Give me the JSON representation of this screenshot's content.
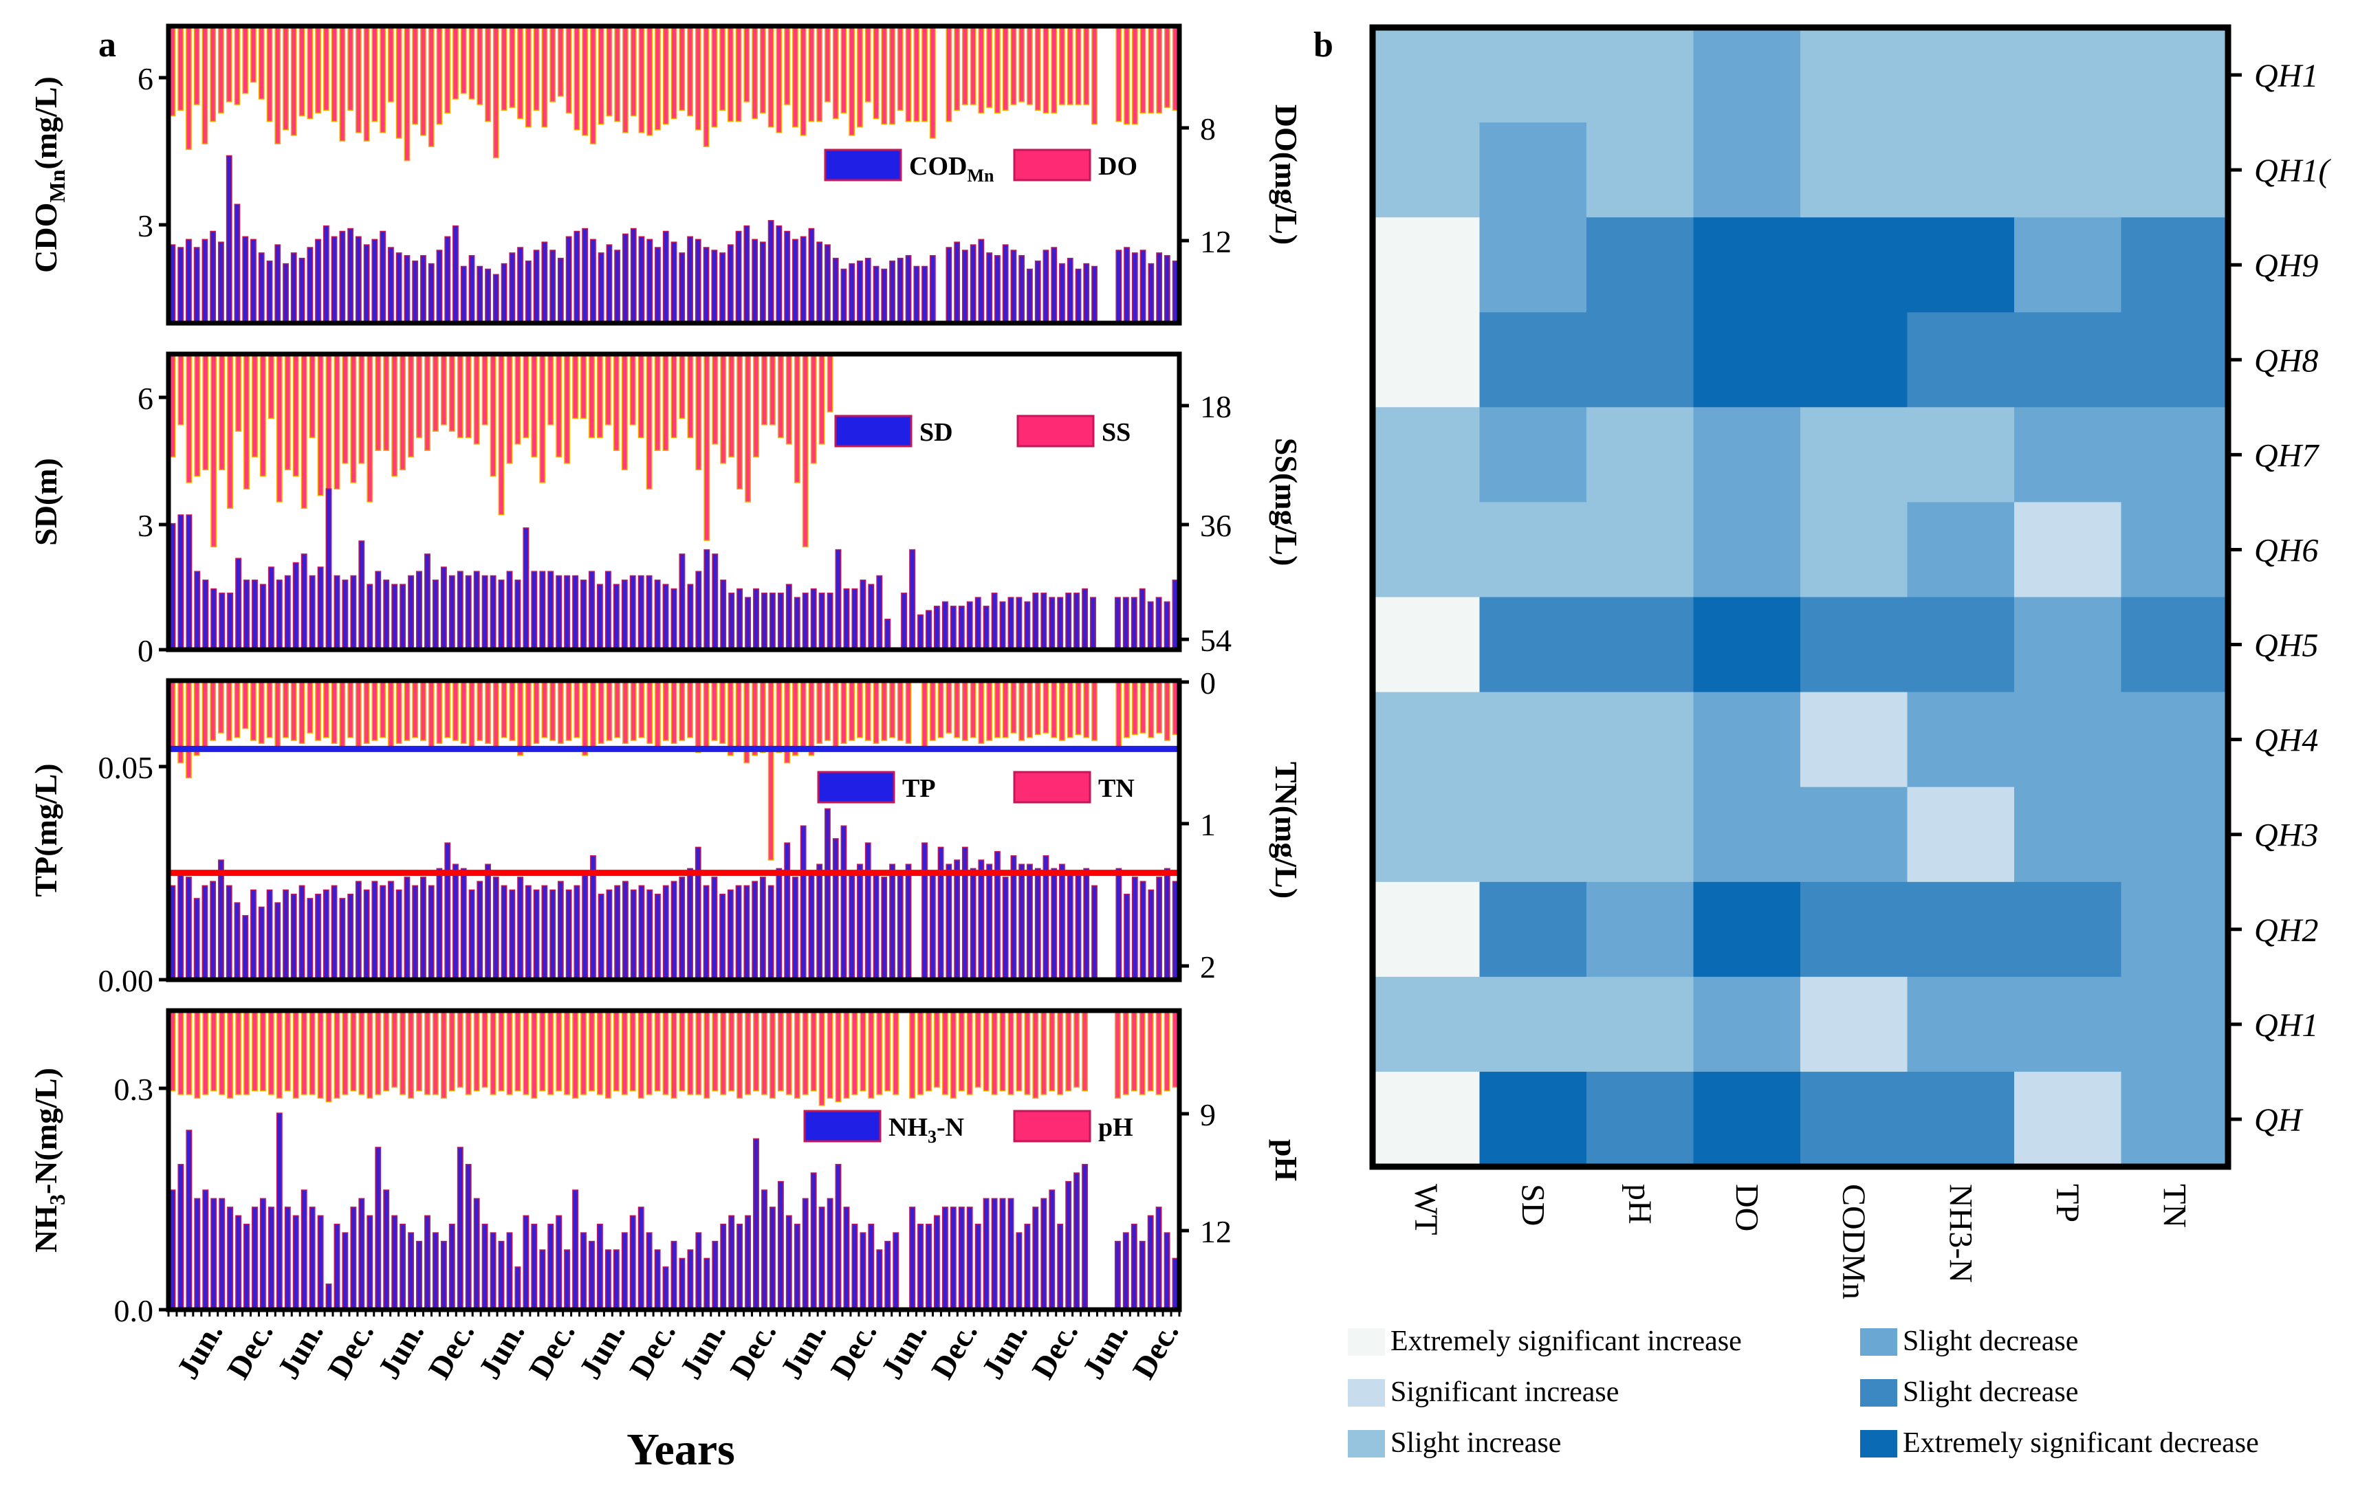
{
  "figure": {
    "panel_a_label": "a",
    "panel_b_label": "b",
    "x_title": "Years",
    "x_tick_labels": [
      "Jun.",
      "Dec.",
      "Jun.",
      "Dec.",
      "Jun.",
      "Dec.",
      "Jun.",
      "Dec.",
      "Jun.",
      "Dec.",
      "Jun.",
      "Dec.",
      "Jun.",
      "Dec.",
      "Jun.",
      "Dec.",
      "Jun.",
      "Dec.",
      "Jun.",
      "Dec."
    ]
  },
  "chart_data": [
    {
      "type": "bar",
      "panel": "a1",
      "left_axis": {
        "label_main": "CDO",
        "label_sub": "Mn",
        "label_tail": "(mg/L)",
        "ticks": [
          "3",
          "6"
        ],
        "ylim": [
          1,
          6.5
        ]
      },
      "right_axis": {
        "label": "DO(mg/L)",
        "ticks": [
          "8",
          "12"
        ],
        "reversed": true
      },
      "legend": [
        {
          "name_main": "COD",
          "name_sub": "Mn",
          "color": "#1f1fe6"
        },
        {
          "name": "DO",
          "color": "#ff2a74"
        }
      ],
      "left_series_values": [
        2.45,
        2.4,
        2.55,
        2.4,
        2.55,
        2.7,
        2.5,
        4.1,
        3.2,
        2.6,
        2.55,
        2.3,
        2.15,
        2.45,
        2.1,
        2.3,
        2.2,
        2.4,
        2.55,
        2.8,
        2.6,
        2.7,
        2.75,
        2.6,
        2.45,
        2.55,
        2.7,
        2.4,
        2.3,
        2.25,
        2.15,
        2.25,
        2.1,
        2.35,
        2.6,
        2.8,
        2.05,
        2.25,
        2.05,
        2.0,
        1.9,
        2.1,
        2.3,
        2.4,
        2.15,
        2.35,
        2.5,
        2.35,
        2.2,
        2.6,
        2.7,
        2.75,
        2.55,
        2.3,
        2.45,
        2.35,
        2.65,
        2.75,
        2.6,
        2.55,
        2.4,
        2.7,
        2.5,
        2.3,
        2.6,
        2.55,
        2.4,
        2.35,
        2.3,
        2.45,
        2.7,
        2.8,
        2.55,
        2.5,
        2.9,
        2.8,
        2.7,
        2.55,
        2.6,
        2.75,
        2.5,
        2.45,
        2.2,
        2.0,
        2.1,
        2.15,
        2.2,
        2.05,
        2.0,
        2.15,
        2.2,
        2.25,
        2.05,
        2.05,
        2.25,
        null,
        2.4,
        2.5,
        2.35,
        2.45,
        2.55,
        2.3,
        2.25,
        2.45,
        2.35,
        2.25,
        2.0,
        2.15,
        2.35,
        2.4,
        2.1,
        2.2,
        2.0,
        2.1,
        2.05,
        null,
        null,
        2.35,
        2.4,
        2.3,
        2.35,
        2.1,
        2.3,
        2.25,
        2.15
      ],
      "right_series_values": [
        7.4,
        7.2,
        8.6,
        7.0,
        8.4,
        7.6,
        7.3,
        6.9,
        7.0,
        6.6,
        6.2,
        6.8,
        7.6,
        8.4,
        7.9,
        8.1,
        7.4,
        7.5,
        7.3,
        7.2,
        7.6,
        8.3,
        7.2,
        8.0,
        8.3,
        7.6,
        8.0,
        6.9,
        8.2,
        9.0,
        7.7,
        8.1,
        8.5,
        7.7,
        7.3,
        6.8,
        6.6,
        6.8,
        7.0,
        7.6,
        8.9,
        7.2,
        7.1,
        7.5,
        7.8,
        7.2,
        7.8,
        6.9,
        6.7,
        7.3,
        7.9,
        8.1,
        8.4,
        7.7,
        7.4,
        7.6,
        8.0,
        7.4,
        8.0,
        8.1,
        7.9,
        7.7,
        7.5,
        7.2,
        7.4,
        7.9,
        8.5,
        7.8,
        7.2,
        7.6,
        7.6,
        6.9,
        7.5,
        7.3,
        7.8,
        8.0,
        7.0,
        7.8,
        8.1,
        7.6,
        7.6,
        6.9,
        7.5,
        7.3,
        8.1,
        7.8,
        6.9,
        7.5,
        7.7,
        7.7,
        7.2,
        7.6,
        7.6,
        7.6,
        8.2,
        null,
        7.6,
        7.2,
        7.0,
        7.0,
        7.3,
        7.1,
        7.3,
        7.2,
        7.0,
        6.9,
        7.0,
        7.2,
        7.3,
        7.3,
        7.0,
        7.0,
        7.0,
        7.0,
        7.7,
        null,
        null,
        7.6,
        7.7,
        7.7,
        7.3,
        7.3,
        7.3,
        7.1,
        7.2
      ],
      "right_ylim": [
        4.2,
        14.8
      ]
    },
    {
      "type": "bar",
      "panel": "a2",
      "left_axis": {
        "label": "SD(m)",
        "ticks": [
          "0",
          "3",
          "6"
        ],
        "ylim": [
          0,
          6.8
        ]
      },
      "right_axis": {
        "label": "SS(mg/L)",
        "ticks": [
          "18",
          "36",
          "54"
        ],
        "reversed": true
      },
      "legend": [
        {
          "name": "SD",
          "color": "#1f1fe6"
        },
        {
          "name": "SS",
          "color": "#ff2a74"
        }
      ],
      "left_series_values": [
        2.9,
        3.1,
        3.1,
        1.8,
        1.6,
        1.4,
        1.3,
        1.3,
        2.1,
        1.6,
        1.6,
        1.5,
        1.9,
        1.6,
        1.7,
        2.0,
        2.2,
        1.7,
        1.9,
        3.7,
        1.7,
        1.6,
        1.7,
        2.5,
        1.5,
        1.8,
        1.6,
        1.5,
        1.5,
        1.7,
        1.8,
        2.2,
        1.6,
        1.9,
        1.7,
        1.8,
        1.7,
        1.8,
        1.7,
        1.7,
        1.6,
        1.8,
        1.6,
        2.8,
        1.8,
        1.8,
        1.8,
        1.7,
        1.7,
        1.7,
        1.6,
        1.8,
        1.5,
        1.8,
        1.5,
        1.6,
        1.7,
        1.7,
        1.7,
        1.6,
        1.5,
        1.4,
        2.2,
        1.5,
        1.8,
        2.3,
        2.2,
        1.6,
        1.3,
        1.4,
        1.2,
        1.4,
        1.3,
        1.3,
        1.3,
        1.5,
        1.2,
        1.3,
        1.4,
        1.3,
        1.3,
        2.3,
        1.4,
        1.4,
        1.6,
        1.5,
        1.7,
        0.7,
        null,
        1.3,
        2.3,
        0.8,
        0.9,
        1.0,
        1.1,
        1.0,
        1.0,
        1.1,
        1.2,
        1.0,
        1.3,
        1.1,
        1.2,
        1.2,
        1.1,
        1.3,
        1.3,
        1.2,
        1.2,
        1.3,
        1.3,
        1.4,
        1.2,
        null,
        null,
        1.2,
        1.2,
        1.2,
        1.4,
        1.1,
        1.2,
        1.1,
        1.6
      ],
      "right_series_values": [
        26,
        21,
        30,
        29,
        28,
        40,
        28,
        34,
        22,
        31,
        26,
        29,
        20,
        33,
        28,
        29,
        34,
        23,
        32,
        39,
        31,
        27,
        30,
        27,
        33,
        25,
        25,
        29,
        28,
        26,
        23,
        25,
        22,
        21,
        22,
        23,
        23,
        24,
        21,
        29,
        35,
        27,
        24,
        23,
        26,
        30,
        21,
        26,
        27,
        20,
        20,
        23,
        23,
        21,
        25,
        28,
        21,
        23,
        31,
        25,
        25,
        23,
        20,
        23,
        28,
        39,
        24,
        27,
        26,
        31,
        33,
        26,
        21,
        21,
        23,
        24,
        30,
        40,
        27,
        24,
        19,
        null,
        null,
        null,
        null,
        null,
        null,
        null,
        null,
        null,
        null,
        null,
        null,
        null,
        null,
        null,
        null,
        null,
        null,
        null,
        null,
        null,
        null,
        null,
        null,
        null,
        null,
        null,
        null,
        null,
        null,
        null,
        null,
        null,
        null,
        null,
        null,
        null,
        null,
        null,
        null,
        null,
        null
      ],
      "right_ylim": [
        10,
        56
      ]
    },
    {
      "type": "bar",
      "panel": "a3",
      "left_axis": {
        "label": "TP(mg/L)",
        "ticks": [
          "0.00",
          "0.05"
        ],
        "ylim": [
          0,
          0.07
        ]
      },
      "right_axis": {
        "label": "TN(mg/L)",
        "ticks": [
          "0",
          "1",
          "2"
        ],
        "reversed": true
      },
      "legend": [
        {
          "name": "TP",
          "color": "#1f1fe6"
        },
        {
          "name": "TN",
          "color": "#ff2a74"
        }
      ],
      "reference_lines": [
        {
          "axis": "left",
          "value": 0.054,
          "color": "#1f1fe6"
        },
        {
          "axis": "left",
          "value": 0.025,
          "color": "#ff0000"
        }
      ],
      "left_series_values": [
        0.022,
        0.025,
        0.024,
        0.019,
        0.022,
        0.023,
        0.028,
        0.022,
        0.018,
        0.015,
        0.021,
        0.017,
        0.021,
        0.018,
        0.021,
        0.02,
        0.022,
        0.019,
        0.02,
        0.021,
        0.022,
        0.019,
        0.02,
        0.023,
        0.021,
        0.023,
        0.022,
        0.023,
        0.021,
        0.024,
        0.022,
        0.024,
        0.022,
        0.026,
        0.032,
        0.027,
        0.026,
        0.021,
        0.023,
        0.027,
        0.024,
        0.022,
        0.021,
        0.024,
        0.022,
        0.021,
        0.022,
        0.021,
        0.023,
        0.021,
        0.022,
        0.025,
        0.029,
        0.02,
        0.021,
        0.022,
        0.023,
        0.021,
        0.022,
        0.021,
        0.02,
        0.022,
        0.023,
        0.024,
        0.026,
        0.031,
        0.022,
        0.024,
        0.02,
        0.021,
        0.022,
        0.022,
        0.023,
        0.024,
        0.022,
        0.026,
        0.032,
        0.024,
        0.036,
        0.025,
        0.027,
        0.04,
        0.033,
        0.036,
        0.025,
        0.027,
        0.032,
        0.025,
        0.024,
        0.027,
        0.025,
        0.027,
        null,
        0.032,
        0.025,
        0.031,
        0.027,
        0.028,
        0.031,
        0.026,
        0.028,
        0.027,
        0.03,
        0.024,
        0.029,
        0.027,
        0.027,
        0.026,
        0.029,
        0.026,
        0.027,
        0.025,
        0.025,
        0.026,
        0.022,
        null,
        null,
        0.026,
        0.02,
        0.024,
        0.023,
        0.021,
        0.024,
        0.026,
        0.023
      ],
      "right_series_values": [
        0.45,
        0.55,
        0.65,
        0.5,
        0.45,
        0.4,
        0.35,
        0.4,
        0.38,
        0.32,
        0.4,
        0.42,
        0.38,
        0.45,
        0.38,
        0.4,
        0.42,
        0.35,
        0.4,
        0.38,
        0.42,
        0.45,
        0.38,
        0.45,
        0.42,
        0.4,
        0.38,
        0.45,
        0.42,
        0.4,
        0.38,
        0.4,
        0.45,
        0.42,
        0.38,
        0.4,
        0.42,
        0.45,
        0.4,
        0.42,
        0.45,
        0.38,
        0.4,
        0.5,
        0.45,
        0.42,
        0.38,
        0.4,
        0.42,
        0.4,
        0.38,
        0.5,
        0.45,
        0.42,
        0.4,
        0.38,
        0.42,
        0.4,
        0.38,
        0.42,
        0.45,
        0.4,
        0.42,
        0.4,
        0.38,
        0.48,
        0.45,
        0.4,
        0.42,
        0.5,
        0.45,
        0.55,
        0.5,
        0.48,
        1.2,
        0.48,
        0.55,
        0.5,
        0.45,
        0.5,
        0.42,
        0.4,
        0.45,
        0.42,
        0.4,
        0.38,
        0.4,
        0.42,
        0.4,
        0.38,
        0.4,
        0.42,
        null,
        0.45,
        0.4,
        0.38,
        0.35,
        0.38,
        0.4,
        0.38,
        0.42,
        0.4,
        0.38,
        0.38,
        0.35,
        0.4,
        0.38,
        0.36,
        0.35,
        0.38,
        0.4,
        0.38,
        0.36,
        0.38,
        0.4,
        null,
        null,
        0.45,
        0.38,
        0.36,
        0.35,
        0.38,
        0.35,
        0.4,
        0.36
      ],
      "right_ylim": [
        0,
        2
      ]
    },
    {
      "type": "bar",
      "panel": "a4",
      "left_axis": {
        "label_main": "NH",
        "label_sub": "3",
        "label_tail": "-N(mg/L)",
        "ticks": [
          "0.0",
          "0.3"
        ],
        "ylim": [
          0,
          0.35
        ]
      },
      "right_axis": {
        "label": "pH",
        "ticks": [
          "9",
          "12"
        ],
        "reversed": true
      },
      "legend": [
        {
          "name_main": "NH",
          "name_sub": "3",
          "name_tail": "-N",
          "color": "#1f1fe6"
        },
        {
          "name": "pH",
          "color": "#ff2a74"
        }
      ],
      "left_series_values": [
        0.14,
        0.17,
        0.21,
        0.13,
        0.14,
        0.13,
        0.13,
        0.12,
        0.11,
        0.1,
        0.12,
        0.13,
        0.12,
        0.23,
        0.12,
        0.11,
        0.14,
        0.12,
        0.11,
        0.03,
        0.1,
        0.09,
        0.12,
        0.13,
        0.11,
        0.19,
        0.14,
        0.11,
        0.1,
        0.09,
        0.08,
        0.11,
        0.09,
        0.08,
        0.1,
        0.19,
        0.17,
        0.13,
        0.1,
        0.09,
        0.08,
        0.09,
        0.05,
        0.11,
        0.1,
        0.07,
        0.1,
        0.11,
        0.07,
        0.14,
        0.09,
        0.08,
        0.1,
        0.07,
        0.07,
        0.09,
        0.11,
        0.12,
        0.09,
        0.07,
        0.05,
        0.08,
        0.06,
        0.07,
        0.09,
        0.06,
        0.08,
        0.1,
        0.11,
        0.1,
        0.11,
        0.2,
        0.14,
        0.12,
        0.15,
        0.11,
        0.1,
        0.13,
        0.16,
        0.12,
        0.13,
        0.17,
        0.12,
        0.1,
        0.09,
        0.1,
        0.07,
        0.08,
        0.09,
        null,
        0.12,
        0.1,
        0.1,
        0.11,
        0.12,
        0.12,
        0.12,
        0.12,
        0.1,
        0.13,
        0.13,
        0.13,
        0.13,
        0.09,
        0.1,
        0.12,
        0.13,
        0.14,
        0.1,
        0.15,
        0.16,
        0.17,
        null,
        null,
        null,
        0.08,
        0.09,
        0.1,
        0.08,
        0.11,
        0.12,
        0.09,
        0.06
      ],
      "right_series_values": [
        8.2,
        8.3,
        8.3,
        8.4,
        8.3,
        8.2,
        8.3,
        8.4,
        8.3,
        8.3,
        8.2,
        8.2,
        8.3,
        8.4,
        8.2,
        8.4,
        8.3,
        8.3,
        8.4,
        8.5,
        8.4,
        8.3,
        8.2,
        8.3,
        8.4,
        8.3,
        8.2,
        8.1,
        8.3,
        8.4,
        8.2,
        8.3,
        8.3,
        8.4,
        8.2,
        8.1,
        8.3,
        8.2,
        8.1,
        8.3,
        8.2,
        8.3,
        8.2,
        8.3,
        8.4,
        8.2,
        8.3,
        8.2,
        8.3,
        8.4,
        8.3,
        8.2,
        8.3,
        8.4,
        8.2,
        8.3,
        8.2,
        8.4,
        8.3,
        8.2,
        8.3,
        8.4,
        8.2,
        8.3,
        8.3,
        8.4,
        8.2,
        8.3,
        8.2,
        8.4,
        8.3,
        8.2,
        8.3,
        8.4,
        8.2,
        8.3,
        8.4,
        8.3,
        8.2,
        8.6,
        8.4,
        8.5,
        8.4,
        8.3,
        8.2,
        8.4,
        8.3,
        8.2,
        8.3,
        null,
        8.4,
        8.3,
        8.2,
        8.1,
        8.3,
        8.4,
        8.2,
        8.3,
        8.1,
        8.2,
        8.3,
        8.2,
        8.3,
        8.2,
        8.3,
        8.4,
        8.3,
        8.2,
        8.3,
        8.2,
        8.1,
        8.2,
        null,
        null,
        null,
        8.4,
        8.3,
        8.2,
        8.3,
        8.2,
        8.3,
        8.2,
        8.1
      ],
      "right_ylim": [
        6,
        14.2
      ]
    },
    {
      "type": "heatmap",
      "panel": "b",
      "x_categories": [
        "WT",
        "SD",
        "pH",
        "DO",
        "CODMn",
        "NH3-N",
        "TP",
        "TN"
      ],
      "y_categories": [
        "QH1",
        "QH1(",
        "QH9",
        "QH8",
        "QH7",
        "QH6",
        "QH5",
        "QH4",
        "QH3",
        "QH2",
        "QH1",
        "QH"
      ],
      "legend": [
        {
          "label": "Extremely significant increase",
          "color": "#f2f7f5"
        },
        {
          "label": "Significant increase",
          "color": "#c7dded"
        },
        {
          "label": "Slight increase",
          "color": "#96c3de"
        },
        {
          "label": "Slight decrease",
          "color": "#6aa8d3"
        },
        {
          "label": "Slight decrease",
          "color": "#3b88c3"
        },
        {
          "label": "Extremely significant decrease",
          "color": "#0b6ab4"
        }
      ],
      "values": [
        [
          2,
          2,
          2,
          3,
          2,
          2,
          2,
          2
        ],
        [
          2,
          3,
          2,
          3,
          2,
          2,
          2,
          2
        ],
        [
          0,
          3,
          4,
          5,
          5,
          5,
          3,
          4
        ],
        [
          0,
          4,
          4,
          5,
          5,
          4,
          4,
          4
        ],
        [
          2,
          3,
          2,
          3,
          2,
          2,
          3,
          3
        ],
        [
          2,
          2,
          2,
          3,
          2,
          3,
          1,
          3
        ],
        [
          0,
          4,
          4,
          5,
          4,
          4,
          3,
          4
        ],
        [
          2,
          2,
          2,
          3,
          1,
          3,
          3,
          3
        ],
        [
          2,
          2,
          2,
          3,
          3,
          1,
          3,
          3
        ],
        [
          0,
          4,
          3,
          5,
          4,
          4,
          4,
          3
        ],
        [
          2,
          2,
          2,
          3,
          1,
          3,
          3,
          3
        ],
        [
          0,
          5,
          4,
          5,
          4,
          4,
          1,
          3
        ]
      ]
    }
  ]
}
